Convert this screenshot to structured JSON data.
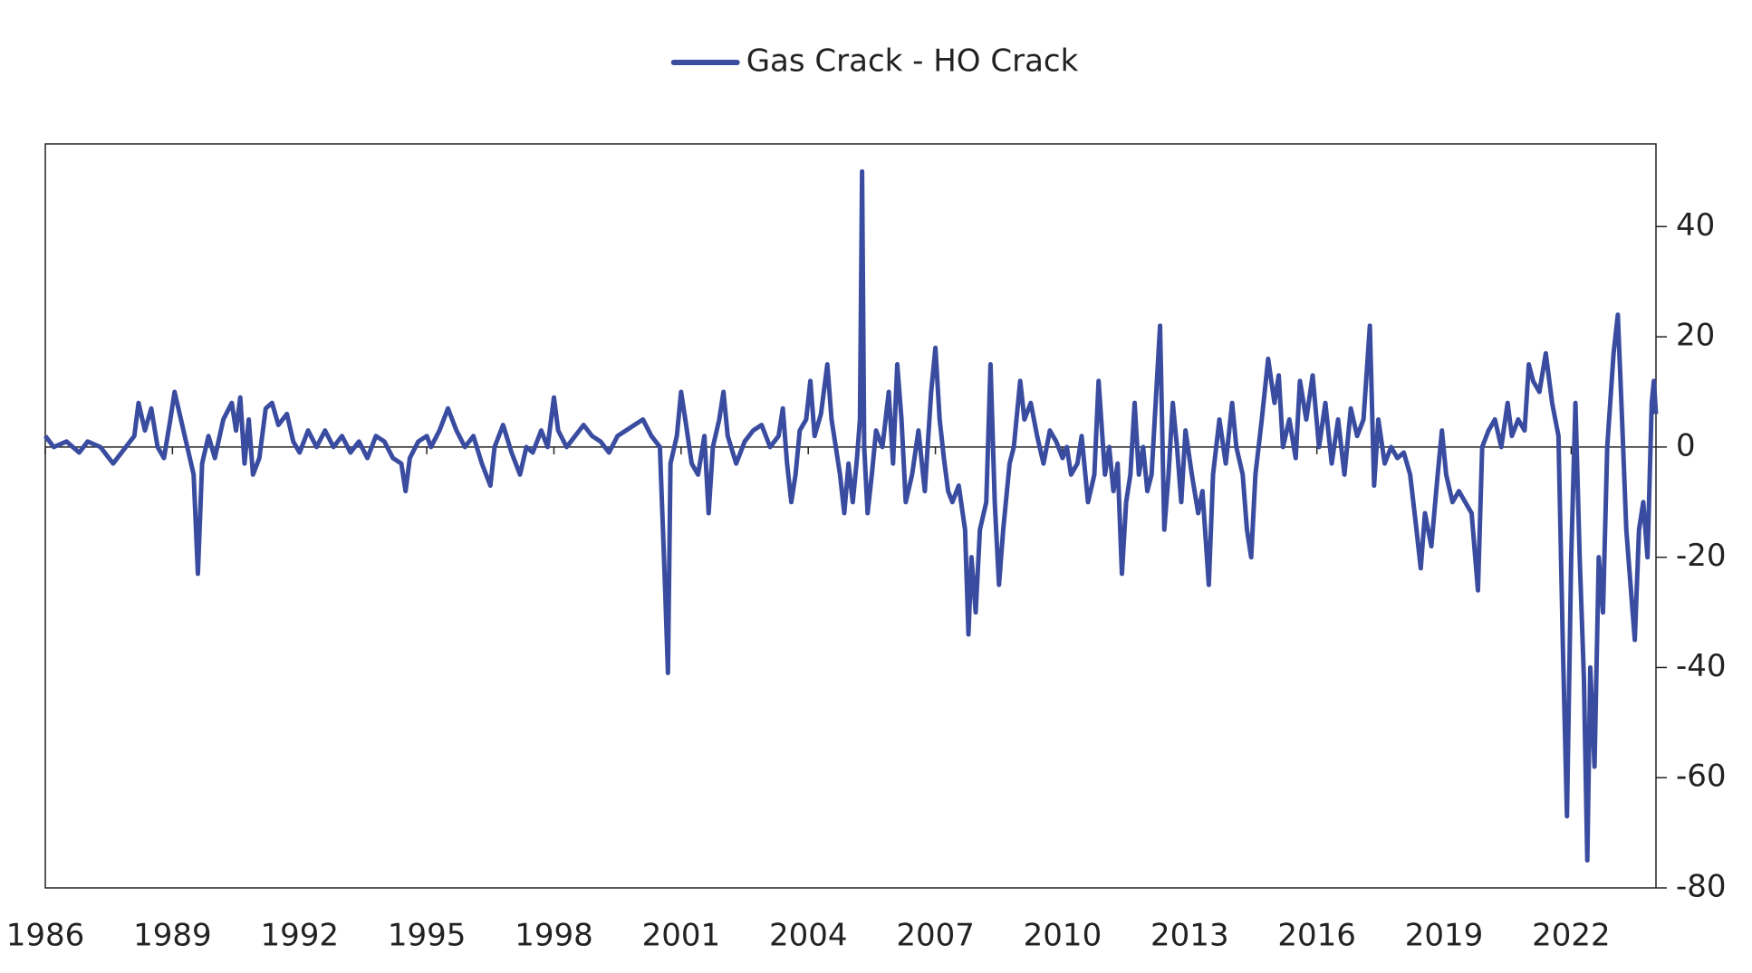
{
  "chart_data": {
    "type": "line",
    "x": [
      1986.0,
      1986.2,
      1986.5,
      1986.8,
      1987.0,
      1987.3,
      1987.6,
      1987.9,
      1988.1,
      1988.2,
      1988.35,
      1988.5,
      1988.65,
      1988.8,
      1988.95,
      1989.05,
      1989.2,
      1989.35,
      1989.5,
      1989.6,
      1989.7,
      1989.85,
      1990.0,
      1990.2,
      1990.4,
      1990.5,
      1990.6,
      1990.7,
      1990.8,
      1990.9,
      1991.05,
      1991.2,
      1991.35,
      1991.5,
      1991.7,
      1991.85,
      1992.0,
      1992.2,
      1992.4,
      1992.6,
      1992.8,
      1993.0,
      1993.2,
      1993.4,
      1993.6,
      1993.8,
      1994.0,
      1994.2,
      1994.4,
      1994.5,
      1994.6,
      1994.8,
      1995.0,
      1995.1,
      1995.3,
      1995.5,
      1995.7,
      1995.9,
      1996.1,
      1996.3,
      1996.5,
      1996.6,
      1996.8,
      1997.0,
      1997.2,
      1997.35,
      1997.5,
      1997.7,
      1997.85,
      1998.0,
      1998.1,
      1998.3,
      1998.5,
      1998.7,
      1998.9,
      1999.1,
      1999.3,
      1999.5,
      1999.7,
      1999.9,
      2000.1,
      2000.3,
      2000.5,
      2000.62,
      2000.69,
      2000.75,
      2000.9,
      2001.0,
      2001.1,
      2001.25,
      2001.4,
      2001.55,
      2001.65,
      2001.75,
      2001.9,
      2002.0,
      2002.1,
      2002.3,
      2002.5,
      2002.7,
      2002.9,
      2003.1,
      2003.3,
      2003.4,
      2003.5,
      2003.6,
      2003.7,
      2003.8,
      2003.95,
      2004.05,
      2004.15,
      2004.3,
      2004.45,
      2004.55,
      2004.65,
      2004.75,
      2004.85,
      2004.95,
      2005.05,
      2005.15,
      2005.22,
      2005.27,
      2005.32,
      2005.4,
      2005.5,
      2005.6,
      2005.75,
      2005.9,
      2006.0,
      2006.1,
      2006.2,
      2006.3,
      2006.45,
      2006.6,
      2006.75,
      2006.9,
      2007.0,
      2007.1,
      2007.2,
      2007.3,
      2007.4,
      2007.55,
      2007.7,
      2007.78,
      2007.85,
      2007.95,
      2008.05,
      2008.2,
      2008.3,
      2008.4,
      2008.5,
      2008.6,
      2008.75,
      2008.85,
      2009.0,
      2009.1,
      2009.25,
      2009.4,
      2009.55,
      2009.7,
      2009.85,
      2010.0,
      2010.1,
      2010.2,
      2010.35,
      2010.45,
      2010.6,
      2010.75,
      2010.85,
      2011.0,
      2011.1,
      2011.2,
      2011.3,
      2011.4,
      2011.5,
      2011.6,
      2011.7,
      2011.8,
      2011.9,
      2012.0,
      2012.1,
      2012.3,
      2012.4,
      2012.5,
      2012.6,
      2012.7,
      2012.8,
      2012.9,
      2013.05,
      2013.2,
      2013.3,
      2013.45,
      2013.55,
      2013.7,
      2013.85,
      2014.0,
      2014.1,
      2014.25,
      2014.35,
      2014.45,
      2014.55,
      2014.7,
      2014.85,
      2015.0,
      2015.1,
      2015.2,
      2015.35,
      2015.5,
      2015.6,
      2015.75,
      2015.9,
      2016.05,
      2016.2,
      2016.35,
      2016.5,
      2016.65,
      2016.8,
      2016.95,
      2017.1,
      2017.25,
      2017.35,
      2017.45,
      2017.6,
      2017.75,
      2017.9,
      2018.05,
      2018.2,
      2018.35,
      2018.45,
      2018.55,
      2018.7,
      2018.85,
      2018.95,
      2019.05,
      2019.2,
      2019.35,
      2019.5,
      2019.65,
      2019.8,
      2019.9,
      2020.05,
      2020.2,
      2020.35,
      2020.5,
      2020.6,
      2020.75,
      2020.9,
      2021.0,
      2021.1,
      2021.25,
      2021.4,
      2021.55,
      2021.7,
      2021.8,
      2021.9,
      2022.0,
      2022.1,
      2022.2,
      2022.3,
      2022.38,
      2022.45,
      2022.55,
      2022.65,
      2022.75,
      2022.85,
      2023.0,
      2023.1,
      2023.2,
      2023.3,
      2023.4,
      2023.5,
      2023.6,
      2023.7,
      2023.8,
      2023.9,
      2023.95,
      2024.0
    ],
    "series": [
      {
        "name": "Gas Crack - HO Crack",
        "color": "#3a4ca0",
        "values": [
          2,
          0,
          1,
          -1,
          1,
          0,
          -3,
          0,
          2,
          8,
          3,
          7,
          0,
          -2,
          5,
          10,
          5,
          0,
          -5,
          -23,
          -3,
          2,
          -2,
          5,
          8,
          3,
          9,
          -3,
          5,
          -5,
          -2,
          7,
          8,
          4,
          6,
          1,
          -1,
          3,
          0,
          3,
          0,
          2,
          -1,
          1,
          -2,
          2,
          1,
          -2,
          -3,
          -8,
          -2,
          1,
          2,
          0,
          3,
          7,
          3,
          0,
          2,
          -3,
          -7,
          0,
          4,
          -1,
          -5,
          0,
          -1,
          3,
          0,
          9,
          3,
          0,
          2,
          4,
          2,
          1,
          -1,
          2,
          3,
          4,
          5,
          2,
          0,
          -25,
          -41,
          -3,
          2,
          10,
          5,
          -3,
          -5,
          2,
          -12,
          0,
          5,
          10,
          2,
          -3,
          1,
          3,
          4,
          0,
          2,
          7,
          -3,
          -10,
          -5,
          3,
          5,
          12,
          2,
          6,
          15,
          5,
          0,
          -5,
          -12,
          -3,
          -10,
          -2,
          5,
          50,
          0,
          -12,
          -5,
          3,
          0,
          10,
          -3,
          15,
          5,
          -10,
          -5,
          3,
          -8,
          10,
          18,
          5,
          -2,
          -8,
          -10,
          -7,
          -15,
          -34,
          -20,
          -30,
          -15,
          -10,
          15,
          -10,
          -25,
          -15,
          -3,
          0,
          12,
          5,
          8,
          2,
          -3,
          3,
          1,
          -2,
          0,
          -5,
          -3,
          2,
          -10,
          -5,
          12,
          -5,
          0,
          -8,
          -3,
          -23,
          -10,
          -5,
          8,
          -5,
          0,
          -8,
          -5,
          22,
          -15,
          -5,
          8,
          0,
          -10,
          3,
          -5,
          -12,
          -8,
          -25,
          -5,
          5,
          -3,
          8,
          0,
          -5,
          -15,
          -20,
          -5,
          5,
          16,
          8,
          13,
          0,
          5,
          -2,
          12,
          5,
          13,
          0,
          8,
          -3,
          5,
          -5,
          7,
          2,
          5,
          22,
          -7,
          5,
          -3,
          0,
          -2,
          -1,
          -5,
          -15,
          -22,
          -12,
          -18,
          -5,
          3,
          -5,
          -10,
          -8,
          -10,
          -12,
          -26,
          0,
          3,
          5,
          0,
          8,
          2,
          5,
          3,
          15,
          12,
          10,
          17,
          8,
          2,
          -35,
          -67,
          -20,
          8,
          -20,
          -42,
          -75,
          -40,
          -58,
          -20,
          -30,
          0,
          17,
          24,
          5,
          -15,
          -25,
          -35,
          -15,
          -10,
          -20,
          8,
          12,
          6
        ]
      }
    ],
    "xlim": [
      1986,
      2024
    ],
    "xticks": [
      1986,
      1989,
      1992,
      1995,
      1998,
      2001,
      2004,
      2007,
      2010,
      2013,
      2016,
      2019,
      2022
    ],
    "ylim": [
      -80,
      55
    ],
    "yticks": [
      -80,
      -60,
      -40,
      -20,
      0,
      20,
      40
    ],
    "y_axis_side": "right",
    "legend": "top"
  }
}
